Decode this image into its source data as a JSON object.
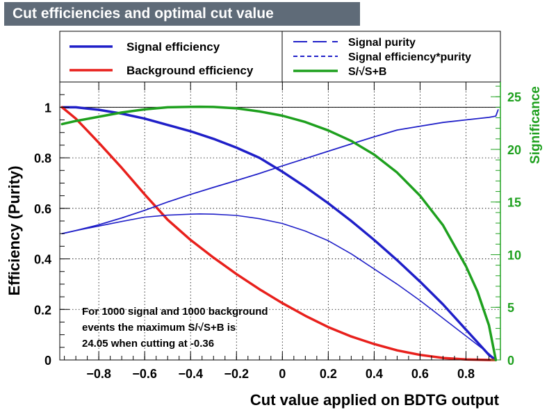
{
  "chart_data": {
    "type": "line",
    "title": "Cut efficiencies and optimal cut value",
    "xlabel": "Cut value applied on BDTG output",
    "ylabel": "Efficiency (Purity)",
    "y2label": "Significance",
    "xlim": [
      -0.97,
      0.95
    ],
    "ylim": [
      0,
      1.1
    ],
    "y2lim": [
      0,
      26.4
    ],
    "x_ticks": [
      -0.8,
      -0.6,
      -0.4,
      -0.2,
      0,
      0.2,
      0.4,
      0.6,
      0.8
    ],
    "x_tick_labels": [
      "−0.8",
      "−0.6",
      "−0.4",
      "−0.2",
      "0",
      "0.2",
      "0.4",
      "0.6",
      "0.8"
    ],
    "y_ticks": [
      0,
      0.2,
      0.4,
      0.6,
      0.8,
      1
    ],
    "y_tick_labels": [
      "0",
      "0.2",
      "0.4",
      "0.6",
      "0.8",
      "1"
    ],
    "y2_ticks": [
      0,
      5,
      10,
      15,
      20,
      25
    ],
    "y2_tick_labels": [
      "0",
      "5",
      "10",
      "15",
      "20",
      "25"
    ],
    "grid": true,
    "reference_line_y": 1,
    "colors": {
      "signal": "#1f1fc8",
      "background": "#e8201c",
      "significance": "#1ea01e",
      "title_bg": "#5f6b78",
      "grid": "#000000"
    },
    "series": [
      {
        "name": "Signal efficiency",
        "axis": "left",
        "x": [
          -0.96,
          -0.9,
          -0.8,
          -0.7,
          -0.6,
          -0.5,
          -0.4,
          -0.3,
          -0.2,
          -0.1,
          0.0,
          0.1,
          0.2,
          0.3,
          0.4,
          0.5,
          0.6,
          0.7,
          0.8,
          0.85,
          0.9,
          0.93
        ],
        "y": [
          1.0,
          1.0,
          0.99,
          0.975,
          0.955,
          0.93,
          0.905,
          0.875,
          0.84,
          0.8,
          0.745,
          0.685,
          0.62,
          0.55,
          0.475,
          0.395,
          0.31,
          0.22,
          0.12,
          0.07,
          0.02,
          0.0
        ]
      },
      {
        "name": "Background efficiency",
        "axis": "left",
        "x": [
          -0.96,
          -0.9,
          -0.8,
          -0.7,
          -0.6,
          -0.5,
          -0.4,
          -0.3,
          -0.2,
          -0.1,
          0.0,
          0.1,
          0.2,
          0.3,
          0.4,
          0.5,
          0.6,
          0.7,
          0.8,
          0.9,
          0.93
        ],
        "y": [
          1.0,
          0.955,
          0.86,
          0.76,
          0.655,
          0.555,
          0.475,
          0.405,
          0.34,
          0.28,
          0.225,
          0.175,
          0.13,
          0.093,
          0.063,
          0.038,
          0.02,
          0.008,
          0.002,
          0.0,
          0.0
        ]
      },
      {
        "name": "Signal purity",
        "axis": "left",
        "x": [
          -0.96,
          -0.9,
          -0.8,
          -0.7,
          -0.6,
          -0.5,
          -0.4,
          -0.3,
          -0.2,
          -0.1,
          0.0,
          0.1,
          0.2,
          0.3,
          0.4,
          0.5,
          0.6,
          0.7,
          0.8,
          0.9,
          0.93,
          0.94
        ],
        "y": [
          0.5,
          0.512,
          0.535,
          0.562,
          0.592,
          0.625,
          0.655,
          0.683,
          0.71,
          0.738,
          0.768,
          0.797,
          0.826,
          0.855,
          0.883,
          0.91,
          0.925,
          0.94,
          0.95,
          0.96,
          0.965,
          0.99
        ]
      },
      {
        "name": "Signal efficiency*purity",
        "axis": "left",
        "x": [
          -0.96,
          -0.9,
          -0.8,
          -0.7,
          -0.6,
          -0.5,
          -0.4,
          -0.36,
          -0.3,
          -0.2,
          -0.1,
          0.0,
          0.1,
          0.2,
          0.3,
          0.4,
          0.5,
          0.6,
          0.7,
          0.8,
          0.9,
          0.93
        ],
        "y": [
          0.5,
          0.512,
          0.53,
          0.548,
          0.565,
          0.573,
          0.577,
          0.578,
          0.577,
          0.572,
          0.559,
          0.54,
          0.51,
          0.472,
          0.42,
          0.36,
          0.3,
          0.235,
          0.165,
          0.095,
          0.025,
          0.0
        ]
      },
      {
        "name": "S/√S+B",
        "axis": "right",
        "x": [
          -0.96,
          -0.9,
          -0.8,
          -0.7,
          -0.6,
          -0.5,
          -0.4,
          -0.36,
          -0.3,
          -0.2,
          -0.1,
          0.0,
          0.1,
          0.2,
          0.3,
          0.4,
          0.5,
          0.6,
          0.7,
          0.8,
          0.85,
          0.9,
          0.93
        ],
        "y": [
          22.4,
          22.7,
          23.1,
          23.5,
          23.8,
          24.0,
          24.04,
          24.05,
          24.03,
          23.9,
          23.6,
          23.2,
          22.6,
          21.8,
          20.8,
          19.5,
          17.8,
          15.6,
          12.8,
          8.9,
          6.5,
          3.3,
          0.0
        ]
      }
    ],
    "legend": {
      "left": [
        {
          "label": "Signal efficiency",
          "style": "solid",
          "color": "#1f1fc8"
        },
        {
          "label": "Background efficiency",
          "style": "solid",
          "color": "#e8201c"
        }
      ],
      "right": [
        {
          "label": "Signal purity",
          "style": "longdash",
          "color": "#1f1fc8"
        },
        {
          "label": "Signal efficiency*purity",
          "style": "shortdash",
          "color": "#1f1fc8"
        },
        {
          "label": "S/√S+B",
          "style": "solid",
          "color": "#1ea01e"
        }
      ]
    },
    "annotation": [
      "For 1000 signal and 1000 background",
      "events the maximum S/√S+B is",
      "24.05 when cutting at -0.36"
    ]
  }
}
